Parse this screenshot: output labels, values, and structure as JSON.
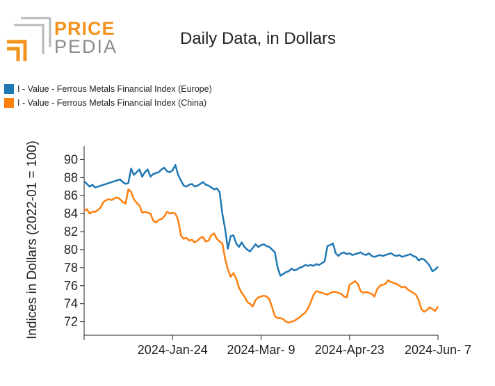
{
  "logo": {
    "word1": "PRICE",
    "word2": "PEDIA"
  },
  "title": "Daily Data, in Dollars",
  "colors": {
    "europe": "#1f77b4",
    "china": "#ff7f0e",
    "logo_orange": "#f2931e",
    "logo_gray": "#8c8c8c"
  },
  "chart_data": {
    "type": "line",
    "title": "Daily Data, in Dollars",
    "xlabel": "",
    "ylabel": "Indices in Dollars (2022-01 = 100)",
    "ylim": [
      70.5,
      91.5
    ],
    "y_ticks": [
      72,
      74,
      76,
      78,
      80,
      82,
      84,
      86,
      88,
      90
    ],
    "x_range_days": [
      0,
      128
    ],
    "x_ticks": [
      {
        "day": 0,
        "label": ""
      },
      {
        "day": 32,
        "label": "2024-Jan-24"
      },
      {
        "day": 64,
        "label": "2024-Mar- 9"
      },
      {
        "day": 96,
        "label": "2024-Apr-23"
      },
      {
        "day": 128,
        "label": "2024-Jun- 7"
      }
    ],
    "series": [
      {
        "name": "I - Value - Ferrous Metals Financial Index (Europe)",
        "color": "#1f77b4",
        "x": [
          0,
          1,
          2,
          3,
          4,
          5,
          6,
          7,
          8,
          9,
          10,
          11,
          12,
          13,
          14,
          15,
          16,
          17,
          18,
          19,
          20,
          21,
          22,
          23,
          24,
          25,
          26,
          27,
          28,
          29,
          30,
          31,
          32,
          33,
          34,
          35,
          36,
          37,
          38,
          39,
          40,
          41,
          42,
          43,
          44,
          45,
          46,
          47,
          48,
          49,
          50,
          51,
          52,
          53,
          54,
          55,
          56,
          57,
          58,
          59,
          60,
          61,
          62,
          63,
          64,
          65,
          66,
          67,
          68,
          69,
          70,
          71,
          72,
          73,
          74,
          75,
          76,
          77,
          78,
          79,
          80,
          81,
          82,
          83,
          84,
          85,
          86,
          87,
          88,
          89,
          90,
          91,
          92,
          93,
          94,
          95,
          96,
          97,
          98,
          99,
          100,
          101,
          102,
          103,
          104,
          105,
          106,
          107,
          108,
          109,
          110,
          111,
          112,
          113,
          114,
          115,
          116,
          117,
          118,
          119,
          120,
          121,
          122,
          123,
          124,
          125,
          126,
          127,
          128
        ],
        "values": [
          87.6,
          87.3,
          87.0,
          87.2,
          86.9,
          87.0,
          87.1,
          87.2,
          87.3,
          87.4,
          87.5,
          87.6,
          87.7,
          87.8,
          87.5,
          87.3,
          87.4,
          89.0,
          88.3,
          88.6,
          88.9,
          88.1,
          88.6,
          88.9,
          88.1,
          88.4,
          88.5,
          88.6,
          88.9,
          89.1,
          88.7,
          88.6,
          88.8,
          89.4,
          88.3,
          87.7,
          87.1,
          87.0,
          87.2,
          87.3,
          87.0,
          87.1,
          87.3,
          87.5,
          87.2,
          87.1,
          86.9,
          86.7,
          86.8,
          86.4,
          84.0,
          82.3,
          80.1,
          81.5,
          81.6,
          80.7,
          80.3,
          80.8,
          80.3,
          80.0,
          79.8,
          80.2,
          80.6,
          80.3,
          80.5,
          80.6,
          80.4,
          80.3,
          80.0,
          79.7,
          78.0,
          77.1,
          77.3,
          77.5,
          77.6,
          77.9,
          77.7,
          77.8,
          78.0,
          78.1,
          78.3,
          78.2,
          78.3,
          78.2,
          78.4,
          78.3,
          78.5,
          78.7,
          80.4,
          80.5,
          80.7,
          79.6,
          79.3,
          79.6,
          79.7,
          79.5,
          79.6,
          79.4,
          79.5,
          79.6,
          79.7,
          79.5,
          79.4,
          79.6,
          79.3,
          79.2,
          79.3,
          79.4,
          79.3,
          79.4,
          79.5,
          79.6,
          79.4,
          79.3,
          79.4,
          79.2,
          79.3,
          79.4,
          79.5,
          79.3,
          79.2,
          78.8,
          79.0,
          78.9,
          78.6,
          78.2,
          77.6,
          77.8,
          78.1
        ]
      },
      {
        "name": "I - Value - Ferrous Metals Financial Index (China)",
        "color": "#ff7f0e",
        "x": [
          0,
          1,
          2,
          3,
          4,
          5,
          6,
          7,
          8,
          9,
          10,
          11,
          12,
          13,
          14,
          15,
          16,
          17,
          18,
          19,
          20,
          21,
          22,
          23,
          24,
          25,
          26,
          27,
          28,
          29,
          30,
          31,
          32,
          33,
          34,
          35,
          36,
          37,
          38,
          39,
          40,
          41,
          42,
          43,
          44,
          45,
          46,
          47,
          48,
          49,
          50,
          51,
          52,
          53,
          54,
          55,
          56,
          57,
          58,
          59,
          60,
          61,
          62,
          63,
          64,
          65,
          66,
          67,
          68,
          69,
          70,
          71,
          72,
          73,
          74,
          75,
          76,
          77,
          78,
          79,
          80,
          81,
          82,
          83,
          84,
          85,
          86,
          87,
          88,
          89,
          90,
          91,
          92,
          93,
          94,
          95,
          96,
          97,
          98,
          99,
          100,
          101,
          102,
          103,
          104,
          105,
          106,
          107,
          108,
          109,
          110,
          111,
          112,
          113,
          114,
          115,
          116,
          117,
          118,
          119,
          120,
          121,
          122,
          123,
          124,
          125,
          126,
          127,
          128
        ],
        "values": [
          84.3,
          84.5,
          84.0,
          84.2,
          84.2,
          84.4,
          84.7,
          85.3,
          85.5,
          85.6,
          85.5,
          85.7,
          85.8,
          85.6,
          85.3,
          85.1,
          86.7,
          86.4,
          85.6,
          85.2,
          84.9,
          84.1,
          84.2,
          84.1,
          84.0,
          83.2,
          83.0,
          83.3,
          83.4,
          83.7,
          84.2,
          84.0,
          84.1,
          84.0,
          83.3,
          81.6,
          81.2,
          81.3,
          81.0,
          81.1,
          80.8,
          81.0,
          81.3,
          81.4,
          80.9,
          81.0,
          81.6,
          81.8,
          81.2,
          80.9,
          80.7,
          79.0,
          77.8,
          77.0,
          77.4,
          76.8,
          75.8,
          75.2,
          74.8,
          74.2,
          74.0,
          73.7,
          74.4,
          74.7,
          74.8,
          74.9,
          74.8,
          74.5,
          73.6,
          72.6,
          72.4,
          72.4,
          72.3,
          72.0,
          71.9,
          72.0,
          72.1,
          72.3,
          72.5,
          72.8,
          73.0,
          73.5,
          74.2,
          75.0,
          75.4,
          75.3,
          75.2,
          75.1,
          75.0,
          75.2,
          75.3,
          75.3,
          75.2,
          75.1,
          74.8,
          74.7,
          76.1,
          76.3,
          76.5,
          76.2,
          75.4,
          75.2,
          75.3,
          75.2,
          75.1,
          74.8,
          75.6,
          76.0,
          76.1,
          76.2,
          76.6,
          76.4,
          76.3,
          76.2,
          76.0,
          75.8,
          75.9,
          75.6,
          75.4,
          75.2,
          75.0,
          74.4,
          73.4,
          73.1,
          73.3,
          73.6,
          73.4,
          73.2,
          73.7
        ]
      }
    ]
  }
}
